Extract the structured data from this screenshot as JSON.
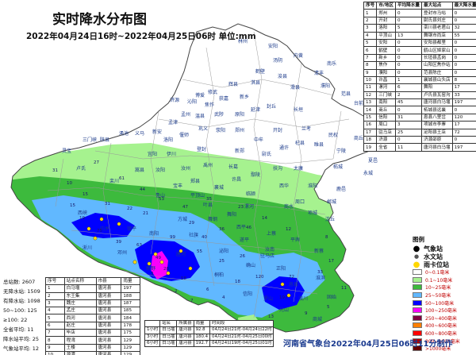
{
  "title": "实时降水分布图",
  "subtitle": "2022年04月24日16时~2022年04月25日06时 单位:mm",
  "credit": "河南省气象台2022年04月25日06时11分制作",
  "city_table": {
    "headers": [
      "序号",
      "市/地区",
      "平均降水量",
      "最大站点",
      "最大降水量"
    ],
    "rows": [
      [
        "1",
        "郑州",
        "0",
        "登封市马峪",
        "0"
      ],
      [
        "2",
        "开封",
        "0",
        "尉氏县刘庄",
        "0"
      ],
      [
        "3",
        "洛阳",
        "5",
        "栾川县老君山",
        "32"
      ],
      [
        "4",
        "平顶山",
        "13",
        "舞钢市尚店",
        "55"
      ],
      [
        "5",
        "安阳",
        "0",
        "安阳县都里",
        "0"
      ],
      [
        "6",
        "鹤壁",
        "0",
        "鹤山区姬家山",
        "0"
      ],
      [
        "7",
        "新乡",
        "0",
        "长垣县孟岗",
        "0"
      ],
      [
        "8",
        "焦作",
        "0",
        "山阳区焦作站",
        "0"
      ],
      [
        "9",
        "濮阳",
        "0",
        "范县陈庄",
        "0"
      ],
      [
        "10",
        "许昌",
        "1",
        "襄城县山头店",
        "8"
      ],
      [
        "11",
        "漯河",
        "6",
        "舞阳",
        "17"
      ],
      [
        "12",
        "三门峡",
        "2",
        "卢氏县瓦窑沟",
        "33"
      ],
      [
        "13",
        "南阳",
        "45",
        "唐河县白马堰",
        "197"
      ],
      [
        "14",
        "商丘",
        "0",
        "柘城县远襄",
        "0"
      ],
      [
        "15",
        "信阳",
        "31",
        "息县八里岔",
        "120"
      ],
      [
        "16",
        "周口",
        "3",
        "项城市李寨",
        "17"
      ],
      [
        "17",
        "驻马店",
        "25",
        "泌阳县王店",
        "72"
      ],
      [
        "18",
        "济源",
        "0",
        "济源邵原",
        "0"
      ],
      [
        "19",
        "全省",
        "11",
        "唐河县白马堰",
        "197"
      ]
    ]
  },
  "stats": {
    "total_stations": "总站数: 2607",
    "no_rain": "无降水站: 1509",
    "has_rain": "有降水站: 1098",
    "r50_100": "50~100: 125",
    "r100": "≥100: 22",
    "province_avg": "全省平均: 11",
    "hydro_avg": "降水站平均: 25",
    "weather_avg": "气象站平均: 12"
  },
  "rank_table": {
    "headers": [
      "序号",
      "站点名称",
      "市县",
      "雨量"
    ],
    "rows": [
      [
        "1",
        "白马堰",
        "唐河县",
        "197"
      ],
      [
        "2",
        "东王集",
        "唐河县",
        "188"
      ],
      [
        "3",
        "魏庄",
        "唐河县",
        "187"
      ],
      [
        "4",
        "孟庄",
        "唐河县",
        "185"
      ],
      [
        "5",
        "西河",
        "唐河县",
        "184"
      ],
      [
        "6",
        "赵庄",
        "唐河县",
        "178"
      ],
      [
        "7",
        "毕店",
        "唐河县",
        "175"
      ],
      [
        "8",
        "程湾",
        "唐河县",
        "129"
      ],
      [
        "9",
        "王楼",
        "唐河县",
        "129"
      ],
      [
        "10",
        "源潭",
        "唐河县",
        "129"
      ]
    ]
  },
  "max_table": {
    "headers": [
      "",
      "站名",
      "所属县",
      "雨量",
      "时间段"
    ],
    "rows": [
      [
        "1小时",
        "白马堰",
        "唐河县",
        "92.8",
        "04月24日21时-04月24日22时"
      ],
      [
        "3小时",
        "白马堰",
        "唐河县",
        "180.4",
        "04月24日21时-04月25日00时"
      ],
      [
        "6小时",
        "白马堰",
        "唐河县",
        "192.7",
        "04月24日19时-04月25日01时"
      ]
    ]
  },
  "legend": {
    "title": "图例",
    "markers": [
      {
        "label": "气象站",
        "icon": "black-dot-icon"
      },
      {
        "label": "水文站",
        "icon": "small-dot-icon"
      },
      {
        "label": "雨卡位站",
        "icon": "yellow-dot-icon"
      }
    ],
    "classes": [
      {
        "label": "0~0.1毫米",
        "color": "#ffffff"
      },
      {
        "label": "0.1~10毫米",
        "color": "#a6f28f"
      },
      {
        "label": "10~25毫米",
        "color": "#3dba3d"
      },
      {
        "label": "25~50毫米",
        "color": "#61b8ff"
      },
      {
        "label": "50~100毫米",
        "color": "#0000ff"
      },
      {
        "label": "100~250毫米",
        "color": "#fa00fa"
      },
      {
        "label": "250~400毫米",
        "color": "#800040"
      },
      {
        "label": "400~600毫米",
        "color": "#ff7f00"
      },
      {
        "label": "600~800毫米",
        "color": "#ff0000"
      },
      {
        "label": "800~1000毫米",
        "color": "#b30000"
      },
      {
        "label": ">1000毫米",
        "color": "#660000"
      }
    ]
  },
  "places": {
    "anyang": "安阳",
    "hebi": "鹤壁",
    "puyang": "濮阳",
    "xinxiang": "新乡",
    "jiaozuo": "焦作",
    "jiyuan": "济源",
    "zhengzhou": "郑州",
    "kaifeng": "开封",
    "shangqiu": "商丘",
    "luoyang": "洛阳",
    "sanmenxia": "三门峡",
    "lingbao": "灵宝",
    "lushi": "卢氏",
    "xuchang": "许昌",
    "pingdingshan": "平顶山",
    "luohe": "漯河",
    "zhoukou": "周口",
    "nanyang": "南阳",
    "zhumadian": "驻马店",
    "xinyang": "信阳",
    "dengfeng": "登封",
    "ruzhou": "汝州",
    "luanchuan": "栾川",
    "xixia": "西峡",
    "neixiang": "内乡",
    "zhenping": "镇平",
    "tanghe": "唐河",
    "biyang": "泌阳",
    "tongbai": "桐柏",
    "queshan": "确山",
    "runan": "汝南",
    "pingyu": "平舆",
    "xincai": "新蔡",
    "xixian": "息县",
    "huangchuan": "潢川",
    "guangshan": "光山",
    "shangcheng": "商城",
    "gushi": "固始",
    "luoshan": "罗山",
    "xiping": "西平",
    "wuyang": "舞阳",
    "fangcheng": "方城",
    "sheqi": "社旗",
    "xinye": "新野",
    "dengzhou": "邓州",
    "xichuan": "淅川",
    "yexian": "叶县",
    "lushan": "鲁山",
    "songxian": "嵩县",
    "yichuan": "伊川",
    "yiyang": "宜阳",
    "mianchi": "渑池",
    "yima": "义马",
    "xinan": "新安",
    "mengjin": "孟津",
    "yanshi": "偃师",
    "gongyi": "巩义",
    "xingyang": "荥阳",
    "xinzheng": "新郑",
    "zhongmou": "中牟",
    "weishi": "尉氏",
    "tongxu": "通许",
    "qixian": "杞县",
    "suixian": "睢县",
    "minquan": "民权",
    "ningling": "宁陵",
    "zhecheng": "柘城",
    "yucheng": "虞城",
    "xiayi": "夏邑",
    "yongcheng": "永城",
    "luyi": "鹿邑",
    "dancheng": "郸城",
    "shenqiu": "沈丘",
    "xiangcheng": "项城",
    "shangshui": "商水",
    "xihua": "西华",
    "fugou": "扶沟",
    "taikang": "太康",
    "huaiyang": "淮阳",
    "yanling": "鄢陵",
    "changge": "长葛",
    "yuzhou": "禹州",
    "jiaxian": "郏县",
    "baofeng": "宝丰",
    "xiangcheng2": "襄城",
    "linying": "临颍",
    "wugang": "舞钢",
    "shangcai": "上蔡",
    "suiping": "遂平",
    "zhengyang": "正阳",
    "huaibin": "淮滨",
    "changyuan": "长垣",
    "fengqiu": "封丘",
    "yanjin": "延津",
    "huojia": "获嘉",
    "huixian": "辉县",
    "linzhou": "林州",
    "tangyin": "汤阴",
    "neihuang": "内黄",
    "huaxian": "滑县",
    "junxian": "浚县",
    "qixian2": "淇县",
    "qingfeng": "清丰",
    "nanle": "南乐",
    "fanxian": "范县",
    "taiqian": "台前",
    "wuzhi": "武陟",
    "wenxian": "温县",
    "mengzhou": "孟州",
    "qinyang": "沁阳",
    "boai": "博爱",
    "xiuwu": "修武",
    "yuanyang": "原阳",
    "lankao": "兰考",
    "shanxian": "陕县",
    "ruyang": "汝阳"
  },
  "values": [
    "27",
    "31",
    "10",
    "15",
    "31",
    "22",
    "75",
    "63",
    "39",
    "19",
    "15",
    "21",
    "49",
    "99",
    "55",
    "58",
    "28",
    "25",
    "26",
    "36",
    "40",
    "46",
    "197",
    "120",
    "72",
    "33",
    "17",
    "8",
    "12",
    "14",
    "23",
    "35",
    "47",
    "53",
    "61",
    "44",
    "29",
    "18",
    "13",
    "9",
    "5",
    "11",
    "6",
    "4",
    "7",
    "2",
    "3"
  ]
}
